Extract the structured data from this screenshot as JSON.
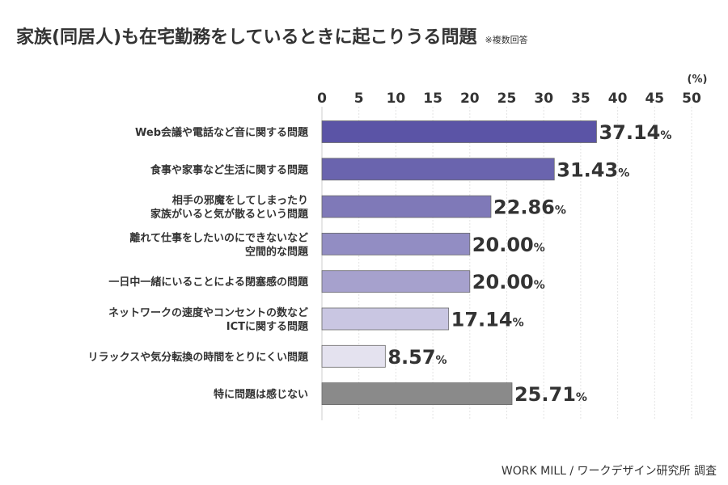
{
  "title": "家族(同居人)も在宅勤務をしているときに起こりうる問題",
  "title_note": "※複数回答",
  "source": "WORK MILL / ワークデザイン研究所 調査",
  "chart_data": {
    "type": "bar",
    "orientation": "horizontal",
    "unit": "(%)",
    "value_suffix": "%",
    "xlim": [
      0,
      50
    ],
    "ticks": [
      "0",
      "5",
      "10",
      "15",
      "20",
      "25",
      "30",
      "35",
      "40",
      "45",
      "50"
    ],
    "grid": true,
    "categories": [
      [
        "Web会議や電話など音に関する問題"
      ],
      [
        "食事や家事など生活に関する問題"
      ],
      [
        "相手の邪魔をしてしまったり",
        "家族がいると気が散るという問題"
      ],
      [
        "離れて仕事をしたいのにできないなど",
        "空間的な問題"
      ],
      [
        "一日中一緒にいることによる閉塞感の問題"
      ],
      [
        "ネットワークの速度やコンセントの数など",
        "ICTに関する問題"
      ],
      [
        "リラックスや気分転換の時間をとりにくい問題"
      ],
      [
        "特に問題は感じない"
      ]
    ],
    "values": [
      37.14,
      31.43,
      22.86,
      20.0,
      20.0,
      17.14,
      8.57,
      25.71
    ],
    "value_labels": [
      "37.14",
      "31.43",
      "22.86",
      "20.00",
      "20.00",
      "17.14",
      "8.57",
      "25.71"
    ],
    "colors": [
      "#5b54a6",
      "#6a64ae",
      "#7f79b8",
      "#928dc3",
      "#a6a1cd",
      "#c9c6e2",
      "#e4e2ef",
      "#8a8a8a"
    ]
  }
}
